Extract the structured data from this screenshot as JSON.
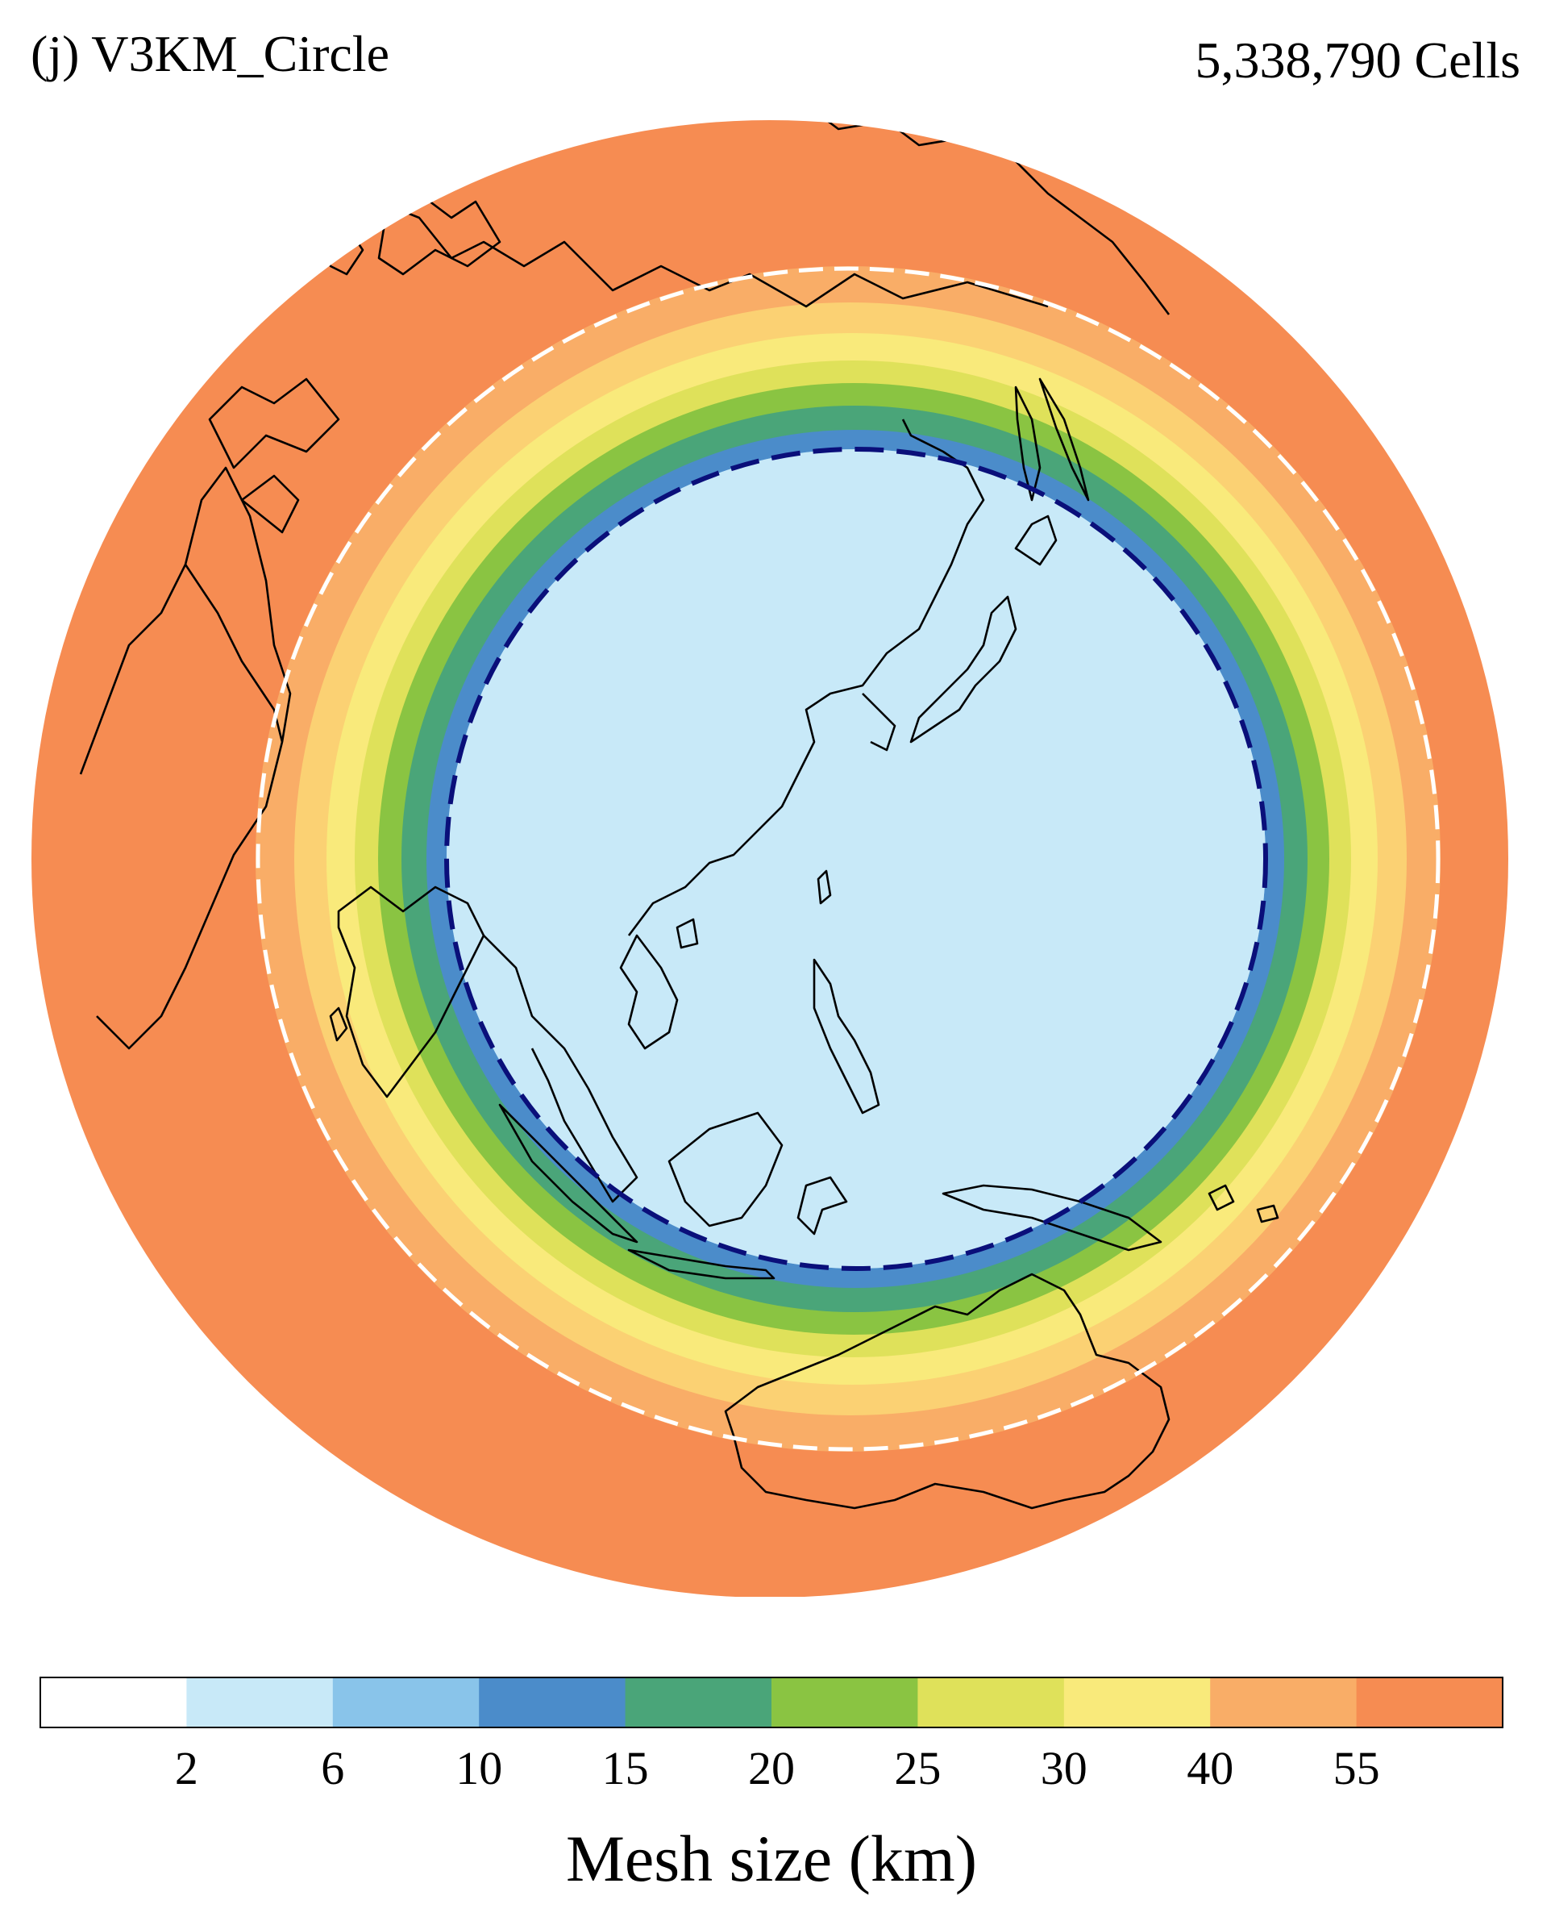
{
  "header": {
    "title": "(j) V3KM_Circle",
    "cell_count": "5,338,790 Cells"
  },
  "map": {
    "projection": "orthographic",
    "ring_colors": [
      "#f68c52",
      "#f9ad67",
      "#fbd173",
      "#f9ea7b",
      "#dfe15a",
      "#8ac442",
      "#4aa579",
      "#4b8cca",
      "#89c4ea",
      "#c8e9f8"
    ],
    "outer_dashed_circle_color": "#ffffff",
    "inner_dashed_circle_color": "#0a0f7a",
    "coastline_color": "#000000"
  },
  "colorbar": {
    "colors": [
      "#ffffff",
      "#c8e9f8",
      "#89c4ea",
      "#4b8cca",
      "#4aa579",
      "#8ac442",
      "#dfe15a",
      "#f9ea7b",
      "#f9ad67",
      "#f68c52"
    ],
    "tick_labels": [
      "2",
      "6",
      "10",
      "15",
      "20",
      "25",
      "30",
      "40",
      "55"
    ],
    "label": "Mesh size (km)"
  }
}
